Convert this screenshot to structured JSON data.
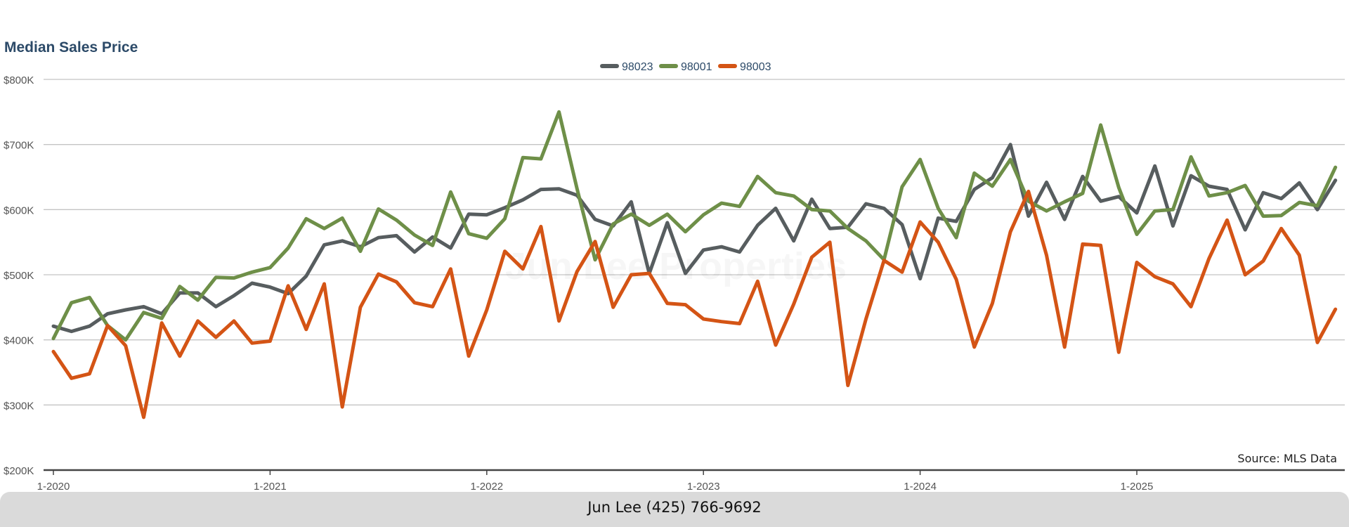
{
  "colors": {
    "98023": "#575d5f",
    "98001": "#6e8f48",
    "98003": "#d45415",
    "grid": "#c4c4c4",
    "axis": "#444444",
    "label": "#555555",
    "title": "#2c4a68"
  },
  "watermark": "Jun Lee Properties",
  "source_note": "Source: MLS Data",
  "footer": {
    "text": "Jun Lee (425) 766-9692"
  },
  "chart_data": {
    "type": "line",
    "title": "Median Sales Price",
    "x_start": "2020-01",
    "x_interval": "month",
    "xlim": [
      "2020-01",
      "2025-12"
    ],
    "x_tick_labels": [
      "1-2020",
      "1-2021",
      "1-2022",
      "1-2023",
      "1-2024",
      "1-2025"
    ],
    "y_unit": "$K",
    "ylim": [
      200,
      800
    ],
    "y_tick_values": [
      200,
      300,
      400,
      500,
      600,
      700,
      800
    ],
    "y_tick_labels": [
      "$200K",
      "$300K",
      "$400K",
      "$500K",
      "$600K",
      "$700K",
      "$800K"
    ],
    "grid": true,
    "legend_position": "top-center",
    "series": [
      {
        "name": "98023",
        "values": [
          421,
          413,
          421,
          440,
          446,
          451,
          440,
          472,
          472,
          451,
          468,
          487,
          481,
          471,
          498,
          546,
          552,
          543,
          557,
          560,
          535,
          558,
          541,
          593,
          592,
          603,
          615,
          631,
          632,
          622,
          585,
          575,
          612,
          502,
          580,
          502,
          538,
          543,
          535,
          576,
          602,
          552,
          616,
          571,
          573,
          609,
          602,
          577,
          494,
          587,
          582,
          631,
          649,
          700,
          590,
          642,
          585,
          651,
          613,
          620,
          595,
          667,
          575,
          652,
          636,
          631,
          569,
          626,
          617,
          641,
          600,
          645
        ]
      },
      {
        "name": "98001",
        "values": [
          402,
          457,
          465,
          422,
          400,
          442,
          433,
          482,
          461,
          496,
          495,
          504,
          511,
          541,
          586,
          571,
          587,
          536,
          601,
          584,
          561,
          545,
          627,
          563,
          556,
          586,
          680,
          678,
          750,
          632,
          523,
          578,
          593,
          576,
          593,
          566,
          592,
          610,
          605,
          651,
          626,
          621,
          600,
          598,
          571,
          552,
          523,
          635,
          677,
          602,
          557,
          656,
          636,
          677,
          613,
          598,
          612,
          625,
          730,
          634,
          562,
          598,
          600,
          681,
          621,
          626,
          637,
          590,
          591,
          611,
          606,
          665
        ]
      },
      {
        "name": "98003",
        "values": [
          382,
          341,
          348,
          422,
          391,
          281,
          426,
          375,
          429,
          404,
          429,
          395,
          398,
          483,
          416,
          486,
          297,
          450,
          501,
          489,
          457,
          451,
          509,
          375,
          446,
          536,
          509,
          574,
          429,
          505,
          551,
          450,
          500,
          502,
          456,
          454,
          432,
          428,
          425,
          490,
          392,
          455,
          527,
          550,
          330,
          432,
          522,
          504,
          581,
          550,
          493,
          389,
          456,
          566,
          628,
          530,
          389,
          547,
          545,
          381,
          519,
          497,
          486,
          451,
          525,
          584,
          500,
          521,
          571,
          530,
          396,
          447
        ]
      }
    ]
  }
}
